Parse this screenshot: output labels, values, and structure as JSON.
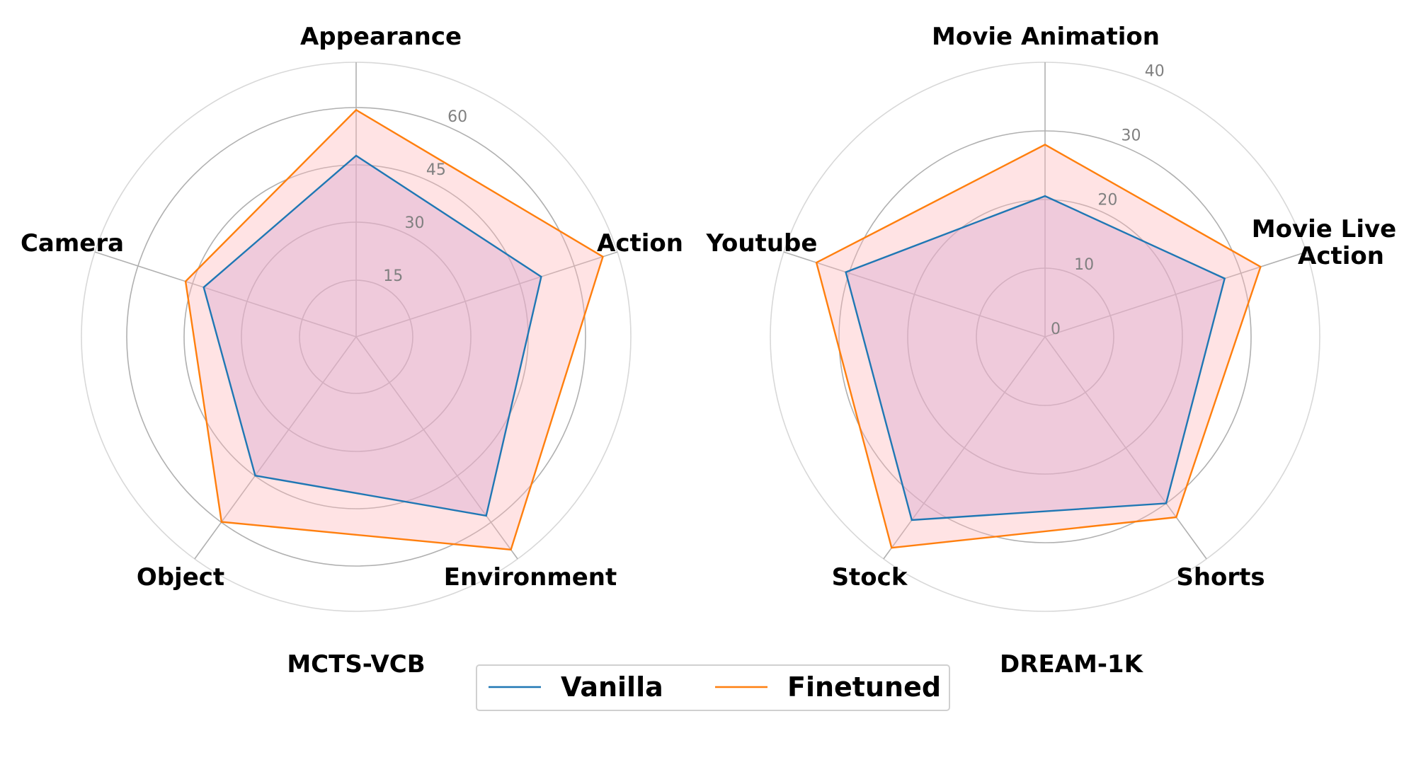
{
  "chart_data": [
    {
      "type": "radar",
      "title": "MCTS-VCB",
      "categories": [
        "Appearance",
        "Action",
        "Environment",
        "Object",
        "Camera"
      ],
      "ticks": [
        15,
        30,
        45,
        60
      ],
      "rlim": [
        0,
        72
      ],
      "grid": true,
      "series": [
        {
          "name": "Vanilla",
          "values": [
            47.5,
            51,
            58,
            45,
            42
          ]
        },
        {
          "name": "Finetuned",
          "values": [
            59.5,
            68,
            69,
            60,
            47
          ]
        }
      ]
    },
    {
      "type": "radar",
      "title": "DREAM-1K",
      "categories": [
        "Movie Animation",
        "Movie Live\nAction",
        "Shorts",
        "Stock",
        "Youtube"
      ],
      "ticks": [
        0,
        10,
        20,
        30,
        40
      ],
      "rlim": [
        0,
        40
      ],
      "grid": true,
      "series": [
        {
          "name": "Vanilla",
          "values": [
            20.5,
            27.5,
            30,
            33,
            30.5
          ]
        },
        {
          "name": "Finetuned",
          "values": [
            28,
            33,
            32.5,
            38,
            35
          ]
        }
      ]
    }
  ],
  "legend": {
    "placement": "bottom-center",
    "entries": [
      {
        "name": "Vanilla",
        "color": "#1f77b4"
      },
      {
        "name": "Finetuned",
        "color": "#ff7f0e"
      }
    ]
  },
  "colors": {
    "vanilla": "#1f77b4",
    "finetuned": "#ff7f0e",
    "finetuned_fill": "#ffb6b9",
    "vanilla_fill": "#c8a6e0",
    "grid": "#b0b0b0"
  }
}
